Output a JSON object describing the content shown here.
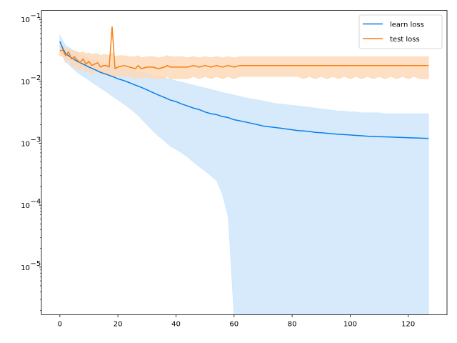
{
  "chart_data": {
    "type": "line",
    "title": "",
    "xlabel": "",
    "ylabel": "",
    "yscale": "log",
    "xlim": [
      -6.35,
      133.35
    ],
    "ylim": [
      1.7e-06,
      0.14
    ],
    "x_ticks": [
      0,
      20,
      40,
      60,
      80,
      100,
      120
    ],
    "x_tick_labels": [
      "0",
      "20",
      "40",
      "60",
      "80",
      "100",
      "120"
    ],
    "y_ticks": [
      1e-05,
      0.0001,
      0.001,
      0.01,
      0.1
    ],
    "y_tick_mantissa": [
      "10",
      "10",
      "10",
      "10",
      "10"
    ],
    "y_tick_exponents": [
      "−5",
      "−4",
      "−3",
      "−2",
      "−1"
    ],
    "grid": false,
    "legend_position": "top-right",
    "series": [
      {
        "name": "learn loss",
        "color": "#0a7ee8",
        "band_color": "#cfe6fc",
        "x": [
          0,
          1,
          2,
          4,
          6,
          8,
          10,
          12,
          14,
          16,
          18,
          20,
          22,
          24,
          26,
          28,
          30,
          32,
          34,
          36,
          38,
          40,
          42,
          44,
          46,
          48,
          50,
          52,
          54,
          56,
          58,
          60,
          62,
          64,
          66,
          68,
          70,
          72,
          74,
          76,
          78,
          80,
          82,
          84,
          86,
          88,
          90,
          92,
          94,
          96,
          98,
          100,
          102,
          104,
          106,
          108,
          110,
          112,
          114,
          116,
          118,
          120,
          122,
          124,
          126,
          127
        ],
        "y": [
          0.044,
          0.034,
          0.028,
          0.024,
          0.021,
          0.019,
          0.017,
          0.0155,
          0.014,
          0.013,
          0.012,
          0.011,
          0.0103,
          0.0095,
          0.0087,
          0.008,
          0.0073,
          0.0066,
          0.006,
          0.0055,
          0.005,
          0.0047,
          0.0043,
          0.004,
          0.0037,
          0.0035,
          0.0032,
          0.003,
          0.0029,
          0.0027,
          0.0026,
          0.0024,
          0.0023,
          0.0022,
          0.0021,
          0.002,
          0.0019,
          0.00185,
          0.0018,
          0.00175,
          0.0017,
          0.00165,
          0.0016,
          0.00158,
          0.00155,
          0.0015,
          0.00148,
          0.00145,
          0.00142,
          0.0014,
          0.00138,
          0.00136,
          0.00134,
          0.00132,
          0.0013,
          0.00129,
          0.00128,
          0.00127,
          0.00126,
          0.00125,
          0.00124,
          0.00123,
          0.00122,
          0.00121,
          0.0012,
          0.0012
        ],
        "upper": [
          0.056,
          0.045,
          0.038,
          0.033,
          0.029,
          0.026,
          0.024,
          0.0225,
          0.021,
          0.0195,
          0.018,
          0.017,
          0.0162,
          0.0155,
          0.0148,
          0.014,
          0.0133,
          0.0126,
          0.012,
          0.0114,
          0.0108,
          0.0102,
          0.0097,
          0.0092,
          0.0087,
          0.0082,
          0.0078,
          0.0074,
          0.007,
          0.0066,
          0.0063,
          0.006,
          0.0057,
          0.0054,
          0.0052,
          0.005,
          0.0048,
          0.0046,
          0.0044,
          0.0043,
          0.0042,
          0.0041,
          0.004,
          0.0039,
          0.0038,
          0.0037,
          0.0036,
          0.0035,
          0.0034,
          0.0033,
          0.0033,
          0.0032,
          0.0032,
          0.0031,
          0.0031,
          0.0031,
          0.0031,
          0.003,
          0.003,
          0.003,
          0.003,
          0.003,
          0.003,
          0.003,
          0.003,
          0.003
        ],
        "lower": [
          0.032,
          0.026,
          0.021,
          0.017,
          0.014,
          0.012,
          0.0105,
          0.009,
          0.0078,
          0.0068,
          0.0058,
          0.005,
          0.0043,
          0.0037,
          0.0031,
          0.0025,
          0.002,
          0.0016,
          0.0013,
          0.0011,
          0.0009,
          0.0008,
          0.0007,
          0.0006,
          0.0005,
          0.00042,
          0.00036,
          0.0003,
          0.00025,
          0.00015,
          6.5e-05,
          1.7e-06,
          1.7e-06,
          1.7e-06,
          1.7e-06,
          1.7e-06,
          1.7e-06,
          1.7e-06,
          1.7e-06,
          1.7e-06,
          1.7e-06,
          1.7e-06,
          1.7e-06,
          1.7e-06,
          1.7e-06,
          1.7e-06,
          1.7e-06,
          1.7e-06,
          1.7e-06,
          1.7e-06,
          1.7e-06,
          1.7e-06,
          1.7e-06,
          1.7e-06,
          1.7e-06,
          1.7e-06,
          1.7e-06,
          1.7e-06,
          1.7e-06,
          1.7e-06,
          1.7e-06,
          1.7e-06,
          1.7e-06,
          1.7e-06,
          1.7e-06,
          1.7e-06
        ]
      },
      {
        "name": "test loss",
        "color": "#f97f0f",
        "band_color": "#fdd9b9",
        "x": [
          0,
          1,
          2,
          3,
          4,
          5,
          6,
          7,
          8,
          9,
          10,
          11,
          12,
          13,
          14,
          15,
          16,
          17,
          18,
          19,
          20,
          22,
          24,
          26,
          27,
          28,
          30,
          32,
          34,
          36,
          37,
          38,
          40,
          42,
          44,
          46,
          48,
          50,
          52,
          54,
          56,
          58,
          60,
          62,
          64,
          66,
          68,
          70,
          72,
          74,
          76,
          78,
          80,
          82,
          84,
          86,
          88,
          90,
          92,
          94,
          96,
          98,
          100,
          102,
          104,
          106,
          108,
          110,
          112,
          114,
          116,
          118,
          120,
          122,
          124,
          126,
          127
        ],
        "y": [
          0.031,
          0.032,
          0.026,
          0.03,
          0.023,
          0.025,
          0.022,
          0.02,
          0.023,
          0.019,
          0.021,
          0.018,
          0.019,
          0.02,
          0.017,
          0.018,
          0.018,
          0.017,
          0.076,
          0.016,
          0.017,
          0.018,
          0.017,
          0.016,
          0.018,
          0.016,
          0.017,
          0.017,
          0.016,
          0.017,
          0.018,
          0.017,
          0.017,
          0.017,
          0.017,
          0.018,
          0.017,
          0.018,
          0.017,
          0.018,
          0.017,
          0.018,
          0.017,
          0.018,
          0.018,
          0.018,
          0.018,
          0.018,
          0.018,
          0.018,
          0.018,
          0.018,
          0.018,
          0.018,
          0.018,
          0.018,
          0.018,
          0.018,
          0.018,
          0.018,
          0.018,
          0.018,
          0.018,
          0.018,
          0.018,
          0.018,
          0.018,
          0.018,
          0.018,
          0.018,
          0.018,
          0.018,
          0.018,
          0.018,
          0.018,
          0.018,
          0.018
        ],
        "upper": [
          0.037,
          0.038,
          0.033,
          0.034,
          0.031,
          0.031,
          0.03,
          0.029,
          0.03,
          0.028,
          0.029,
          0.027,
          0.028,
          0.028,
          0.026,
          0.027,
          0.027,
          0.026,
          0.029,
          0.025,
          0.026,
          0.026,
          0.025,
          0.025,
          0.026,
          0.024,
          0.025,
          0.025,
          0.024,
          0.025,
          0.026,
          0.025,
          0.025,
          0.025,
          0.024,
          0.025,
          0.024,
          0.025,
          0.024,
          0.025,
          0.024,
          0.025,
          0.024,
          0.025,
          0.025,
          0.025,
          0.025,
          0.025,
          0.025,
          0.025,
          0.025,
          0.025,
          0.025,
          0.025,
          0.025,
          0.025,
          0.025,
          0.025,
          0.025,
          0.025,
          0.025,
          0.025,
          0.025,
          0.025,
          0.025,
          0.025,
          0.025,
          0.025,
          0.025,
          0.025,
          0.025,
          0.025,
          0.025,
          0.025,
          0.025,
          0.025,
          0.025
        ],
        "lower": [
          0.026,
          0.025,
          0.02,
          0.023,
          0.017,
          0.018,
          0.016,
          0.015,
          0.016,
          0.014,
          0.015,
          0.013,
          0.014,
          0.014,
          0.013,
          0.013,
          0.013,
          0.012,
          0.012,
          0.012,
          0.012,
          0.012,
          0.012,
          0.011,
          0.012,
          0.011,
          0.012,
          0.011,
          0.011,
          0.011,
          0.012,
          0.011,
          0.011,
          0.011,
          0.011,
          0.012,
          0.011,
          0.012,
          0.011,
          0.012,
          0.011,
          0.012,
          0.011,
          0.012,
          0.012,
          0.012,
          0.012,
          0.012,
          0.012,
          0.012,
          0.012,
          0.012,
          0.012,
          0.012,
          0.011,
          0.012,
          0.011,
          0.012,
          0.011,
          0.012,
          0.011,
          0.012,
          0.011,
          0.012,
          0.011,
          0.012,
          0.011,
          0.012,
          0.011,
          0.012,
          0.011,
          0.012,
          0.011,
          0.012,
          0.011,
          0.011,
          0.011
        ]
      }
    ],
    "legend": [
      "learn loss",
      "test loss"
    ]
  }
}
